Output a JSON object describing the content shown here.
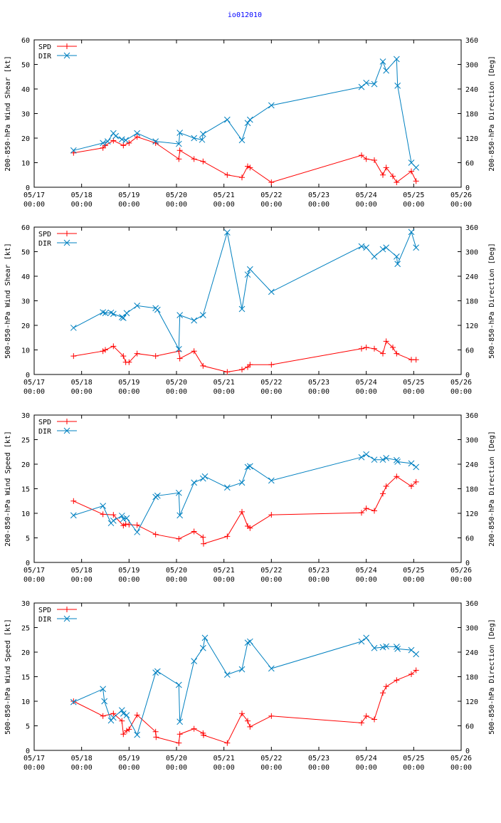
{
  "title": "io012010",
  "colors": {
    "spd": "#ff0000",
    "dir": "#0080c0",
    "axis": "#000000",
    "title": "#0000ff"
  },
  "chart_data": [
    {
      "type": "line",
      "ylabel": "200-850-hPa Wind Shear [kt]",
      "y2label": "200-850-hPa Direction [Deg]",
      "ylim": [
        0,
        60
      ],
      "y2lim": [
        0,
        360
      ],
      "yticks": [
        "0",
        "10",
        "20",
        "30",
        "40",
        "50",
        "60"
      ],
      "y2ticks": [
        "0",
        "60",
        "120",
        "180",
        "240",
        "300",
        "360"
      ],
      "xlim": [
        0,
        9
      ],
      "xticks": [
        {
          "value": 0,
          "date": "05/17",
          "time": "00:00"
        },
        {
          "value": 1,
          "date": "05/18",
          "time": "00:00"
        },
        {
          "value": 2,
          "date": "05/19",
          "time": "00:00"
        },
        {
          "value": 3,
          "date": "05/20",
          "time": "00:00"
        },
        {
          "value": 4,
          "date": "05/21",
          "time": "00:00"
        },
        {
          "value": 5,
          "date": "05/22",
          "time": "00:00"
        },
        {
          "value": 6,
          "date": "05/23",
          "time": "00:00"
        },
        {
          "value": 7,
          "date": "05/24",
          "time": "00:00"
        },
        {
          "value": 8,
          "date": "05/25",
          "time": "00:00"
        },
        {
          "value": 9,
          "date": "05/26",
          "time": "00:00"
        }
      ],
      "legend": [
        {
          "name": "SPD",
          "marker": "plus"
        },
        {
          "name": "DIR",
          "marker": "cross"
        }
      ],
      "series": [
        {
          "name": "SPD",
          "axis": "y1",
          "marker": "plus",
          "x": [
            0.83,
            1.45,
            1.5,
            1.67,
            1.88,
            2.0,
            2.17,
            2.56,
            3.05,
            3.07,
            3.37,
            3.56,
            4.07,
            4.38,
            4.5,
            4.55,
            5.0,
            6.9,
            7.0,
            7.17,
            7.35,
            7.42,
            7.56,
            7.64,
            7.95,
            8.05
          ],
          "y": [
            14,
            16,
            17,
            19,
            17,
            18,
            20.5,
            18,
            11.5,
            15,
            11.5,
            10.5,
            5,
            4,
            8.5,
            8,
            2,
            13,
            11.5,
            11,
            5,
            8,
            4.5,
            2,
            6.5,
            2.5
          ]
        },
        {
          "name": "DIR",
          "axis": "y2",
          "marker": "cross",
          "x": [
            0.83,
            1.45,
            1.55,
            1.67,
            1.72,
            1.85,
            1.93,
            2.17,
            2.56,
            3.05,
            3.07,
            3.37,
            3.54,
            3.56,
            4.07,
            4.38,
            4.5,
            4.55,
            5.0,
            6.9,
            7.0,
            7.17,
            7.35,
            7.42,
            7.64,
            7.66,
            7.95,
            8.05
          ],
          "y": [
            90,
            108,
            112,
            132,
            125,
            117,
            115,
            132,
            112,
            106,
            133,
            120,
            116,
            130,
            165,
            115,
            157,
            165,
            200,
            245,
            255,
            252,
            307,
            285,
            313,
            248,
            60,
            48
          ]
        }
      ]
    },
    {
      "type": "line",
      "ylabel": "500-850-hPa Wind Shear [kt]",
      "y2label": "500-850-hPa Direction [Deg]",
      "ylim": [
        0,
        60
      ],
      "y2lim": [
        0,
        360
      ],
      "yticks": [
        "0",
        "10",
        "20",
        "30",
        "40",
        "50",
        "60"
      ],
      "y2ticks": [
        "0",
        "60",
        "120",
        "180",
        "240",
        "300",
        "360"
      ],
      "xlim": [
        0,
        9
      ],
      "xticks": [
        {
          "value": 0,
          "date": "05/17",
          "time": "00:00"
        },
        {
          "value": 1,
          "date": "05/18",
          "time": "00:00"
        },
        {
          "value": 2,
          "date": "05/19",
          "time": "00:00"
        },
        {
          "value": 3,
          "date": "05/20",
          "time": "00:00"
        },
        {
          "value": 4,
          "date": "05/21",
          "time": "00:00"
        },
        {
          "value": 5,
          "date": "05/22",
          "time": "00:00"
        },
        {
          "value": 6,
          "date": "05/23",
          "time": "00:00"
        },
        {
          "value": 7,
          "date": "05/24",
          "time": "00:00"
        },
        {
          "value": 8,
          "date": "05/25",
          "time": "00:00"
        },
        {
          "value": 9,
          "date": "05/26",
          "time": "00:00"
        }
      ],
      "legend": [
        {
          "name": "SPD",
          "marker": "plus"
        },
        {
          "name": "DIR",
          "marker": "cross"
        }
      ],
      "series": [
        {
          "name": "SPD",
          "axis": "y1",
          "marker": "plus",
          "x": [
            0.83,
            1.45,
            1.5,
            1.67,
            1.88,
            1.93,
            2.0,
            2.17,
            2.56,
            3.05,
            3.07,
            3.37,
            3.56,
            4.07,
            4.38,
            4.5,
            4.55,
            5.0,
            6.9,
            7.0,
            7.17,
            7.35,
            7.42,
            7.56,
            7.64,
            7.95,
            8.05
          ],
          "y": [
            7.5,
            9.5,
            10,
            11.5,
            7.5,
            5,
            5,
            8.5,
            7.5,
            9.5,
            6.5,
            9.5,
            3.5,
            1,
            2,
            3,
            4,
            4,
            10.5,
            11,
            10.5,
            8.5,
            13.5,
            11,
            8.5,
            6,
            6
          ]
        },
        {
          "name": "DIR",
          "axis": "y2",
          "marker": "cross",
          "x": [
            0.83,
            1.45,
            1.5,
            1.62,
            1.67,
            1.85,
            1.88,
            1.95,
            2.17,
            2.56,
            2.6,
            3.05,
            3.07,
            3.37,
            3.56,
            4.07,
            4.38,
            4.5,
            4.55,
            5.0,
            6.9,
            7.0,
            7.17,
            7.35,
            7.42,
            7.64,
            7.66,
            7.95,
            8.05
          ],
          "y": [
            114,
            152,
            150,
            151,
            148,
            140,
            138,
            150,
            168,
            162,
            158,
            62,
            145,
            132,
            145,
            347,
            160,
            244,
            257,
            202,
            313,
            310,
            288,
            306,
            310,
            288,
            270,
            348,
            310
          ]
        }
      ]
    },
    {
      "type": "line",
      "ylabel": "200-850-hPa Wind Speed [kt]",
      "y2label": "200-850-hPa Direction [Deg]",
      "ylim": [
        0,
        30
      ],
      "y2lim": [
        0,
        360
      ],
      "yticks": [
        "0",
        "5",
        "10",
        "15",
        "20",
        "25",
        "30"
      ],
      "y2ticks": [
        "0",
        "60",
        "120",
        "180",
        "240",
        "300",
        "360"
      ],
      "xlim": [
        0,
        9
      ],
      "xticks": [
        {
          "value": 0,
          "date": "05/17",
          "time": "00:00"
        },
        {
          "value": 1,
          "date": "05/18",
          "time": "00:00"
        },
        {
          "value": 2,
          "date": "05/19",
          "time": "00:00"
        },
        {
          "value": 3,
          "date": "05/20",
          "time": "00:00"
        },
        {
          "value": 4,
          "date": "05/21",
          "time": "00:00"
        },
        {
          "value": 5,
          "date": "05/22",
          "time": "00:00"
        },
        {
          "value": 6,
          "date": "05/23",
          "time": "00:00"
        },
        {
          "value": 7,
          "date": "05/24",
          "time": "00:00"
        },
        {
          "value": 8,
          "date": "05/25",
          "time": "00:00"
        },
        {
          "value": 9,
          "date": "05/26",
          "time": "00:00"
        }
      ],
      "legend": [
        {
          "name": "SPD",
          "marker": "plus"
        },
        {
          "name": "DIR",
          "marker": "cross"
        }
      ],
      "series": [
        {
          "name": "SPD",
          "axis": "y1",
          "marker": "plus",
          "x": [
            0.83,
            1.45,
            1.67,
            1.88,
            1.93,
            2.0,
            2.17,
            2.56,
            3.05,
            3.37,
            3.56,
            3.57,
            4.07,
            4.38,
            4.5,
            4.55,
            5.0,
            6.9,
            7.0,
            7.17,
            7.35,
            7.42,
            7.64,
            7.95,
            8.05
          ],
          "y": [
            12.5,
            9.8,
            9.7,
            7.5,
            7.8,
            7.7,
            7.6,
            5.7,
            4.8,
            6.3,
            5.1,
            3.8,
            5.3,
            10.3,
            7.4,
            7.0,
            9.7,
            10.1,
            11,
            10.5,
            14,
            15.5,
            17.5,
            15.5,
            16.4
          ]
        },
        {
          "name": "DIR",
          "axis": "y2",
          "marker": "cross",
          "x": [
            0.83,
            1.45,
            1.62,
            1.67,
            1.85,
            1.88,
            1.95,
            2.17,
            2.56,
            2.6,
            3.05,
            3.07,
            3.37,
            3.56,
            3.6,
            4.07,
            4.38,
            4.5,
            4.55,
            5.0,
            6.9,
            7.0,
            7.17,
            7.35,
            7.42,
            7.64,
            7.66,
            7.95,
            8.05
          ],
          "y": [
            115,
            138,
            96,
            102,
            114,
            106,
            108,
            74,
            160,
            163,
            170,
            115,
            195,
            205,
            210,
            183,
            195,
            233,
            235,
            200,
            257,
            264,
            251,
            251,
            255,
            250,
            246,
            242,
            233
          ]
        }
      ]
    },
    {
      "type": "line",
      "ylabel": "500-850-hPa Wind Speed [kt]",
      "y2label": "500-850-hPa Direction [Deg]",
      "ylim": [
        0,
        30
      ],
      "y2lim": [
        0,
        360
      ],
      "yticks": [
        "0",
        "5",
        "10",
        "15",
        "20",
        "25",
        "30"
      ],
      "y2ticks": [
        "0",
        "60",
        "120",
        "180",
        "240",
        "300",
        "360"
      ],
      "xlim": [
        0,
        9
      ],
      "xticks": [
        {
          "value": 0,
          "date": "05/17",
          "time": "00:00"
        },
        {
          "value": 1,
          "date": "05/18",
          "time": "00:00"
        },
        {
          "value": 2,
          "date": "05/19",
          "time": "00:00"
        },
        {
          "value": 3,
          "date": "05/20",
          "time": "00:00"
        },
        {
          "value": 4,
          "date": "05/21",
          "time": "00:00"
        },
        {
          "value": 5,
          "date": "05/22",
          "time": "00:00"
        },
        {
          "value": 6,
          "date": "05/23",
          "time": "00:00"
        },
        {
          "value": 7,
          "date": "05/24",
          "time": "00:00"
        },
        {
          "value": 8,
          "date": "05/25",
          "time": "00:00"
        },
        {
          "value": 9,
          "date": "05/26",
          "time": "00:00"
        }
      ],
      "legend": [
        {
          "name": "SPD",
          "marker": "plus"
        },
        {
          "name": "DIR",
          "marker": "cross"
        }
      ],
      "series": [
        {
          "name": "SPD",
          "axis": "y1",
          "marker": "plus",
          "x": [
            0.83,
            1.45,
            1.67,
            1.85,
            1.88,
            1.95,
            2.0,
            2.17,
            2.56,
            2.57,
            3.05,
            3.07,
            3.37,
            3.56,
            3.57,
            4.07,
            4.38,
            4.5,
            4.55,
            5.0,
            6.9,
            7.0,
            7.17,
            7.35,
            7.42,
            7.64,
            7.95,
            8.05
          ],
          "y": [
            10,
            7,
            7.5,
            6,
            3.3,
            4,
            4.3,
            7.2,
            3.8,
            2.7,
            1.5,
            3.3,
            4.4,
            3.5,
            3.1,
            1.5,
            7.5,
            6,
            4.8,
            7,
            5.6,
            7,
            6.3,
            11.7,
            13,
            14.3,
            15.5,
            16.3
          ]
        },
        {
          "name": "DIR",
          "axis": "y2",
          "marker": "cross",
          "x": [
            0.83,
            1.45,
            1.48,
            1.62,
            1.67,
            1.85,
            1.88,
            1.95,
            2.17,
            2.56,
            2.6,
            3.05,
            3.07,
            3.37,
            3.56,
            3.6,
            4.07,
            4.38,
            4.5,
            4.55,
            5.0,
            6.9,
            7.0,
            7.17,
            7.35,
            7.42,
            7.64,
            7.66,
            7.95,
            8.05
          ],
          "y": [
            118,
            150,
            120,
            73,
            80,
            98,
            90,
            86,
            38,
            190,
            193,
            160,
            70,
            218,
            250,
            275,
            185,
            198,
            263,
            266,
            200,
            266,
            275,
            250,
            252,
            254,
            253,
            248,
            245,
            235
          ]
        }
      ]
    }
  ]
}
